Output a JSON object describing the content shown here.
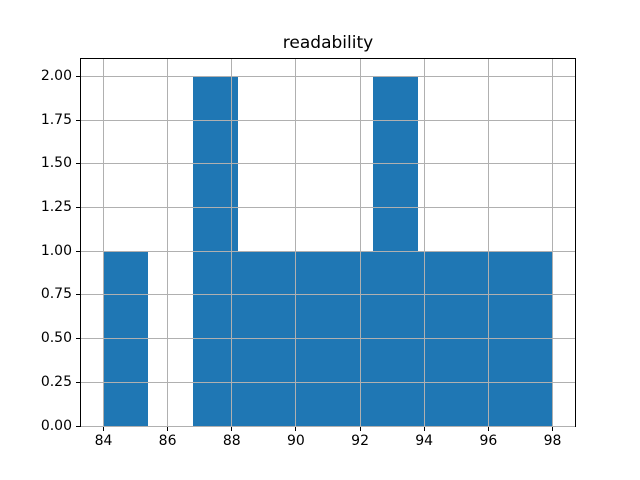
{
  "figure": {
    "background": "#ffffff"
  },
  "chart_data": {
    "type": "bar",
    "subtype": "histogram",
    "title": "readability",
    "xlabel": "",
    "ylabel": "",
    "bin_edges": [
      84.0,
      85.4,
      86.8,
      88.2,
      89.6,
      91.0,
      92.4,
      93.8,
      95.2,
      96.6,
      98.0
    ],
    "counts": [
      1,
      0,
      2,
      1,
      1,
      1,
      2,
      1,
      1,
      1
    ],
    "xlim": [
      83.3,
      98.7
    ],
    "ylim": [
      0,
      2.1
    ],
    "xticks": [
      84,
      86,
      88,
      90,
      92,
      94,
      96,
      98
    ],
    "xticklabels": [
      "84",
      "86",
      "88",
      "90",
      "92",
      "94",
      "96",
      "98"
    ],
    "yticks": [
      0.0,
      0.25,
      0.5,
      0.75,
      1.0,
      1.25,
      1.5,
      1.75,
      2.0
    ],
    "yticklabels": [
      "0.00",
      "0.25",
      "0.50",
      "0.75",
      "1.00",
      "1.25",
      "1.50",
      "1.75",
      "2.00"
    ],
    "grid": true,
    "grid_above_bars": true,
    "legend": null,
    "colors": {
      "bar": "#1f77b4",
      "grid": "#b0b0b0",
      "spine": "#000000",
      "text": "#000000"
    }
  }
}
